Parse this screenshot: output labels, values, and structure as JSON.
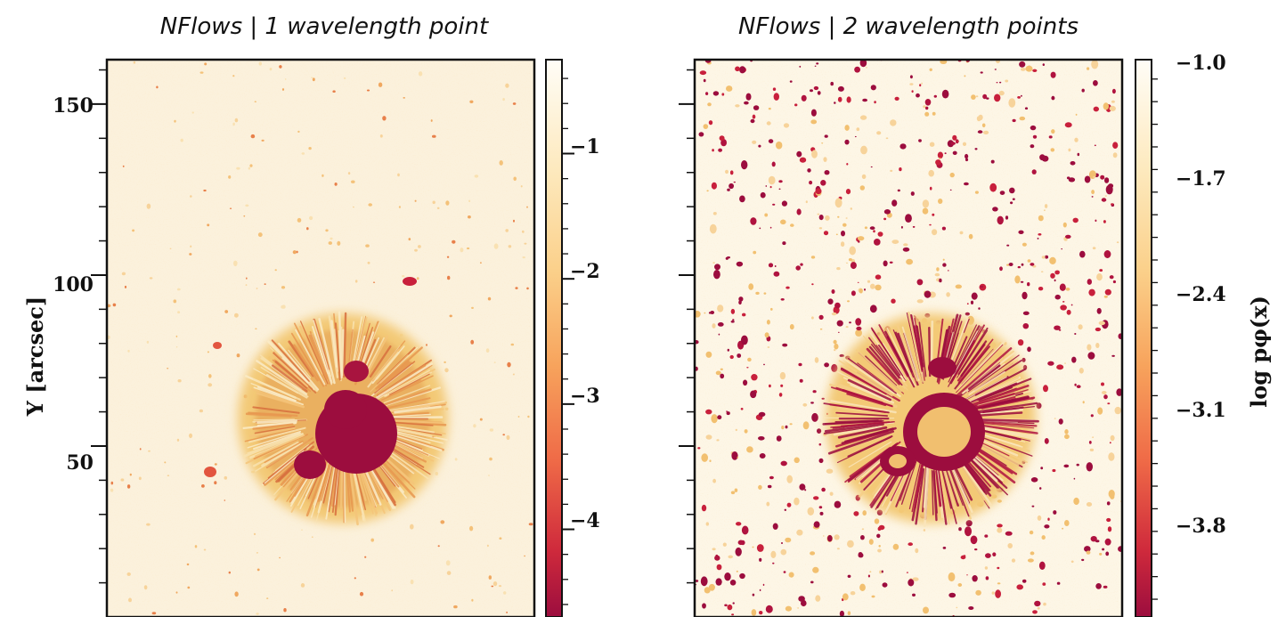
{
  "chart_data": [
    {
      "type": "heatmap",
      "title": "NFlows | 1 wavelength point",
      "ylabel": "Y [arcsec]",
      "xlabel": "",
      "ylim": [
        0,
        163
      ],
      "yticks": [
        50,
        100,
        150
      ],
      "ytick_labels": [
        "50",
        "100",
        "150"
      ],
      "colormap": "YlOrRd",
      "colorbar": {
        "range": [
          -4.7,
          -0.25
        ],
        "ticks": [
          -1,
          -2,
          -3,
          -4
        ],
        "tick_labels": [
          "−1",
          "−2",
          "−3",
          "−4"
        ],
        "label": ""
      }
    },
    {
      "type": "heatmap",
      "title": "NFlows | 2 wavelength points",
      "ylabel": "",
      "xlabel": "",
      "ylim": [
        0,
        163
      ],
      "yticks": [
        50,
        100,
        150
      ],
      "ytick_labels": [],
      "colormap": "YlOrRd",
      "colorbar": {
        "range": [
          -4.45,
          -1.0
        ],
        "ticks": [
          -1.0,
          -1.7,
          -2.4,
          -3.1,
          -3.8
        ],
        "tick_labels": [
          "−1.0",
          "−1.7",
          "−2.4",
          "−3.1",
          "−3.8"
        ],
        "label": "log pφ(x)"
      }
    }
  ],
  "colors": {
    "background_cream": "#fbf1dc",
    "umbra": "#9c0d3e",
    "penumbra": "#f3c976",
    "axis": "#111111"
  }
}
